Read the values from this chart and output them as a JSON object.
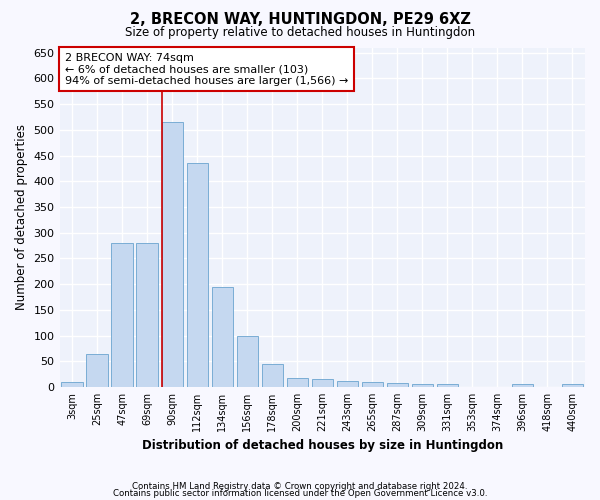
{
  "title": "2, BRECON WAY, HUNTINGDON, PE29 6XZ",
  "subtitle": "Size of property relative to detached houses in Huntingdon",
  "xlabel": "Distribution of detached houses by size in Huntingdon",
  "ylabel": "Number of detached properties",
  "bar_color": "#c5d8f0",
  "bar_edge_color": "#7aadd4",
  "background_color": "#eef2fb",
  "grid_color": "#ffffff",
  "categories": [
    "3sqm",
    "25sqm",
    "47sqm",
    "69sqm",
    "90sqm",
    "112sqm",
    "134sqm",
    "156sqm",
    "178sqm",
    "200sqm",
    "221sqm",
    "243sqm",
    "265sqm",
    "287sqm",
    "309sqm",
    "331sqm",
    "353sqm",
    "374sqm",
    "396sqm",
    "418sqm",
    "440sqm"
  ],
  "values": [
    10,
    65,
    280,
    280,
    515,
    435,
    195,
    100,
    45,
    18,
    15,
    12,
    10,
    8,
    5,
    5,
    0,
    0,
    5,
    0,
    5
  ],
  "vline_x_index": 4,
  "annotation_text": "2 BRECON WAY: 74sqm\n← 6% of detached houses are smaller (103)\n94% of semi-detached houses are larger (1,566) →",
  "annotation_box_color": "#ffffff",
  "annotation_box_edge": "#cc0000",
  "vline_color": "#cc0000",
  "ylim": [
    0,
    660
  ],
  "yticks": [
    0,
    50,
    100,
    150,
    200,
    250,
    300,
    350,
    400,
    450,
    500,
    550,
    600,
    650
  ],
  "footer1": "Contains HM Land Registry data © Crown copyright and database right 2024.",
  "footer2": "Contains public sector information licensed under the Open Government Licence v3.0."
}
